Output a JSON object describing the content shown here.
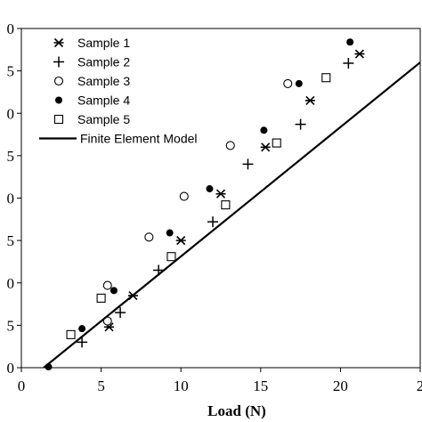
{
  "chart_data": {
    "type": "scatter",
    "xlabel": "Load (N)",
    "ylabel": "",
    "xlim": [
      0,
      25
    ],
    "ylim": [
      0,
      40
    ],
    "x_ticks": [
      "0",
      "5",
      "10",
      "15",
      "20",
      "2"
    ],
    "y_ticks": [
      "0",
      "5",
      "0",
      "5",
      "0",
      "5",
      "0",
      "5",
      "0"
    ],
    "grid": false,
    "legend_position": "top-left",
    "series": [
      {
        "name": "Sample 1",
        "marker": "asterisk",
        "points": [
          [
            5.5,
            4.8
          ],
          [
            7.0,
            8.5
          ],
          [
            10.0,
            15.0
          ],
          [
            12.5,
            20.5
          ],
          [
            15.3,
            26.0
          ],
          [
            18.1,
            31.5
          ],
          [
            21.2,
            37.0
          ]
        ]
      },
      {
        "name": "Sample 2",
        "marker": "plus",
        "points": [
          [
            3.8,
            3.0
          ],
          [
            6.2,
            6.5
          ],
          [
            8.6,
            11.5
          ],
          [
            12.0,
            17.2
          ],
          [
            14.2,
            24.0
          ],
          [
            17.5,
            28.7
          ],
          [
            20.5,
            35.9
          ]
        ]
      },
      {
        "name": "Sample 3",
        "marker": "open-circle",
        "points": [
          [
            5.4,
            5.5
          ],
          [
            5.4,
            9.7
          ],
          [
            8.0,
            15.4
          ],
          [
            10.2,
            20.2
          ],
          [
            13.1,
            26.2
          ],
          [
            16.7,
            33.5
          ]
        ]
      },
      {
        "name": "Sample 4",
        "marker": "filled-circle",
        "points": [
          [
            1.7,
            0.1
          ],
          [
            3.8,
            4.6
          ],
          [
            5.8,
            9.1
          ],
          [
            9.3,
            15.9
          ],
          [
            11.8,
            21.1
          ],
          [
            15.2,
            28.0
          ],
          [
            17.4,
            33.5
          ],
          [
            20.6,
            38.4
          ]
        ]
      },
      {
        "name": "Sample 5",
        "marker": "open-square",
        "points": [
          [
            3.1,
            3.9
          ],
          [
            5.0,
            8.2
          ],
          [
            9.4,
            13.1
          ],
          [
            12.8,
            19.2
          ],
          [
            16.0,
            26.5
          ],
          [
            19.1,
            34.2
          ]
        ]
      },
      {
        "name": "Finite Element Model",
        "marker": "line",
        "points": [
          [
            1.4,
            0.0
          ],
          [
            25.0,
            36.0
          ]
        ]
      }
    ]
  }
}
